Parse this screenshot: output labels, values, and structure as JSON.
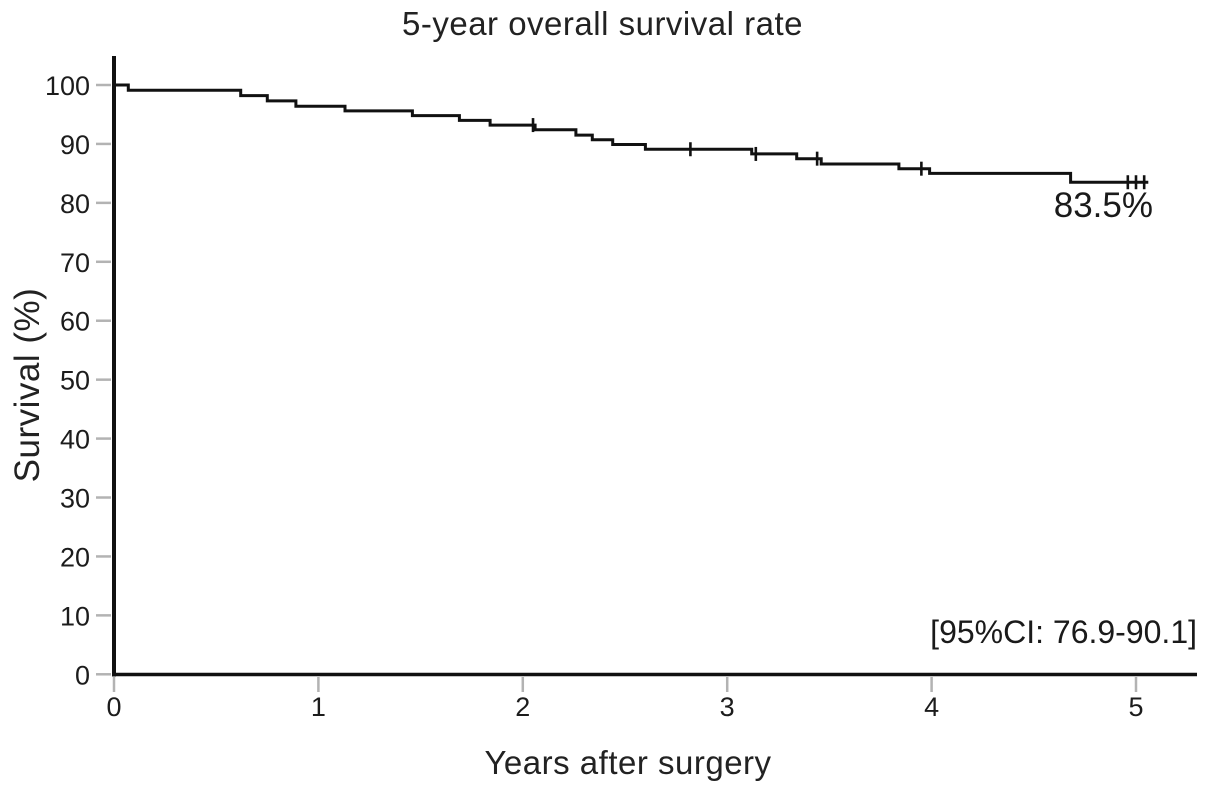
{
  "chart_data": {
    "type": "line",
    "subtype": "kaplan-meier-step-curve",
    "title": "5-year overall survival rate",
    "xlabel": "Years after surgery",
    "ylabel": "Survival (%)",
    "xlim": [
      0,
      5.3
    ],
    "ylim": [
      0,
      105
    ],
    "x_ticks": [
      0,
      1,
      2,
      3,
      4,
      5
    ],
    "y_ticks": [
      0,
      10,
      20,
      30,
      40,
      50,
      60,
      70,
      80,
      90,
      100
    ],
    "grid": false,
    "legend": "none",
    "annotations": {
      "final_survival_label": "83.5%",
      "ci_label": "[95%CI: 76.9-90.1]"
    },
    "series": [
      {
        "name": "Overall survival",
        "start": {
          "time": 0,
          "survival": 100
        },
        "steps": [
          [
            0.07,
            99.1
          ],
          [
            0.62,
            98.2
          ],
          [
            0.75,
            97.3
          ],
          [
            0.89,
            96.4
          ],
          [
            1.13,
            95.6
          ],
          [
            1.46,
            94.8
          ],
          [
            1.69,
            94.0
          ],
          [
            1.84,
            93.2
          ],
          [
            2.06,
            92.4
          ],
          [
            2.26,
            91.5
          ],
          [
            2.34,
            90.7
          ],
          [
            2.44,
            89.9
          ],
          [
            2.6,
            89.1
          ],
          [
            3.12,
            88.3
          ],
          [
            3.34,
            87.5
          ],
          [
            3.46,
            86.6
          ],
          [
            3.84,
            85.8
          ],
          [
            3.99,
            85.0
          ],
          [
            4.68,
            83.5
          ]
        ],
        "end_time": 5.06,
        "final_survival_pct": 83.5,
        "ci_95": [
          76.9,
          90.1
        ],
        "censor_marks": [
          [
            2.05,
            93.2
          ],
          [
            2.82,
            89.1
          ],
          [
            3.14,
            88.3
          ],
          [
            3.44,
            87.5
          ],
          [
            3.95,
            85.8
          ],
          [
            4.96,
            83.5
          ],
          [
            5.0,
            83.5
          ],
          [
            5.04,
            83.5
          ]
        ]
      }
    ],
    "colors": {
      "curve": "#111111",
      "axis": "#111111",
      "tick": "#b3b3b3",
      "text": "#1c1c1c",
      "background": "#ffffff"
    }
  }
}
